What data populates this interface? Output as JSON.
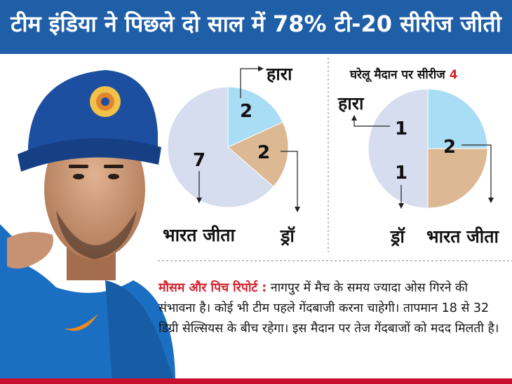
{
  "header": {
    "title": "टीम इंडिया ने पिछले दो साल में 78% टी-20 सीरीज जीती"
  },
  "chart_data": [
    {
      "type": "pie",
      "title": "",
      "categories": [
        "हारा",
        "ड्रॉ",
        "भारत जीता"
      ],
      "values": [
        2,
        2,
        7
      ],
      "colors": [
        "#a9dcf5",
        "#dcb893",
        "#d5ddef"
      ]
    },
    {
      "type": "pie",
      "title": "घरेलू मैदान पर सीरीज 4",
      "categories": [
        "हारा",
        "ड्रॉ",
        "भारत जीता"
      ],
      "values": [
        1,
        1,
        2
      ],
      "colors": [
        "#a9dcf5",
        "#dcb893",
        "#d5ddef"
      ]
    }
  ],
  "pie1": {
    "lost_value": "2",
    "draw_value": "2",
    "won_value": "7",
    "lost_label": "हारा",
    "draw_label": "ड्रॉ",
    "won_label": "भारत जीता"
  },
  "pie2": {
    "title_text": "घरेलू मैदान पर सीरीज",
    "title_count": "4",
    "lost_value": "1",
    "draw_value": "1",
    "won_value": "2",
    "lost_label": "हारा",
    "draw_label": "ड्रॉ",
    "won_label": "भारत जीता"
  },
  "report": {
    "label": "मौसम और पिच रिपोर्ट :",
    "text": "नागपुर में मैच के समय ज्यादा ओस गिरने की संभावना है। कोई भी टीम पहले गेंदबाजी करना चाहेगी। तापमान 18 से 32 डिग्री सेल्सियस के बीच रहेगा। इस मैदान पर तेज गेंदबाजों को मदद मिलती है।"
  },
  "colors": {
    "header_bg": "#1f5fa8",
    "accent_red": "#d4232e",
    "lost": "#a9dcf5",
    "draw": "#dcb893",
    "won": "#d5ddef",
    "jersey": "#1b6fc2"
  }
}
